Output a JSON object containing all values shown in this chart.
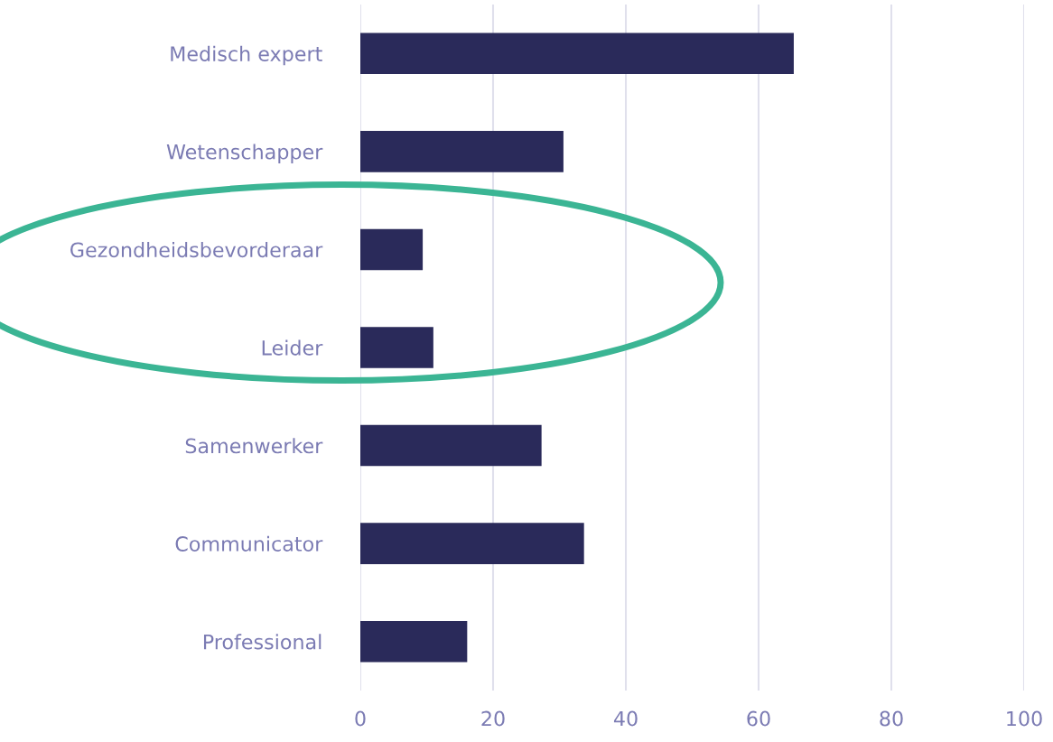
{
  "chart_data": {
    "type": "bar",
    "orientation": "horizontal",
    "categories": [
      "Medisch expert",
      "Wetenschapper",
      "Gezondheidsbevorderaar",
      "Leider",
      "Samenwerker",
      "Communicator",
      "Professional"
    ],
    "values": [
      65.3,
      30.6,
      9.4,
      11.0,
      27.3,
      33.7,
      16.1
    ],
    "color": "#2a2a5a",
    "xlim": [
      0,
      100
    ],
    "xticks": [
      0,
      20,
      40,
      60,
      80,
      100
    ],
    "grid": "x"
  }
}
